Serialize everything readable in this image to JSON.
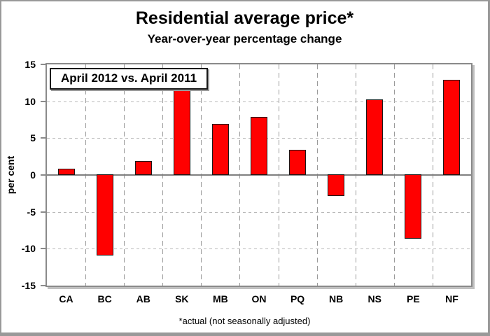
{
  "figure": {
    "title": "Residential average price*",
    "subtitle": "Year-over-year percentage change",
    "footnote": "*actual (not seasonally adjusted)"
  },
  "chart_data": {
    "type": "bar",
    "title": "Residential average price*",
    "subtitle": "Year-over-year percentage change",
    "annotation": "April 2012 vs. April 2011",
    "ylabel": "per cent",
    "categories": [
      "CA",
      "BC",
      "AB",
      "SK",
      "MB",
      "ON",
      "PQ",
      "NB",
      "NS",
      "PE",
      "NF"
    ],
    "values": [
      0.9,
      -11.0,
      1.9,
      11.9,
      6.9,
      7.9,
      3.4,
      -2.9,
      10.3,
      -8.7,
      12.9
    ],
    "ylim": [
      -15,
      15
    ],
    "yticks": [
      -15,
      -10,
      -5,
      0,
      5,
      10,
      15
    ],
    "grid": "dashed vertical at category boundaries; dashed horizontal at -10, -5, 5, 10; solid zero line",
    "legend_position": "top-left inset box",
    "colors": {
      "bar_fill": "#FF0000",
      "bar_border": "#1A1A1A",
      "axis_gray": "#8A8A8A",
      "grid_gray": "#9A9A9A"
    }
  }
}
